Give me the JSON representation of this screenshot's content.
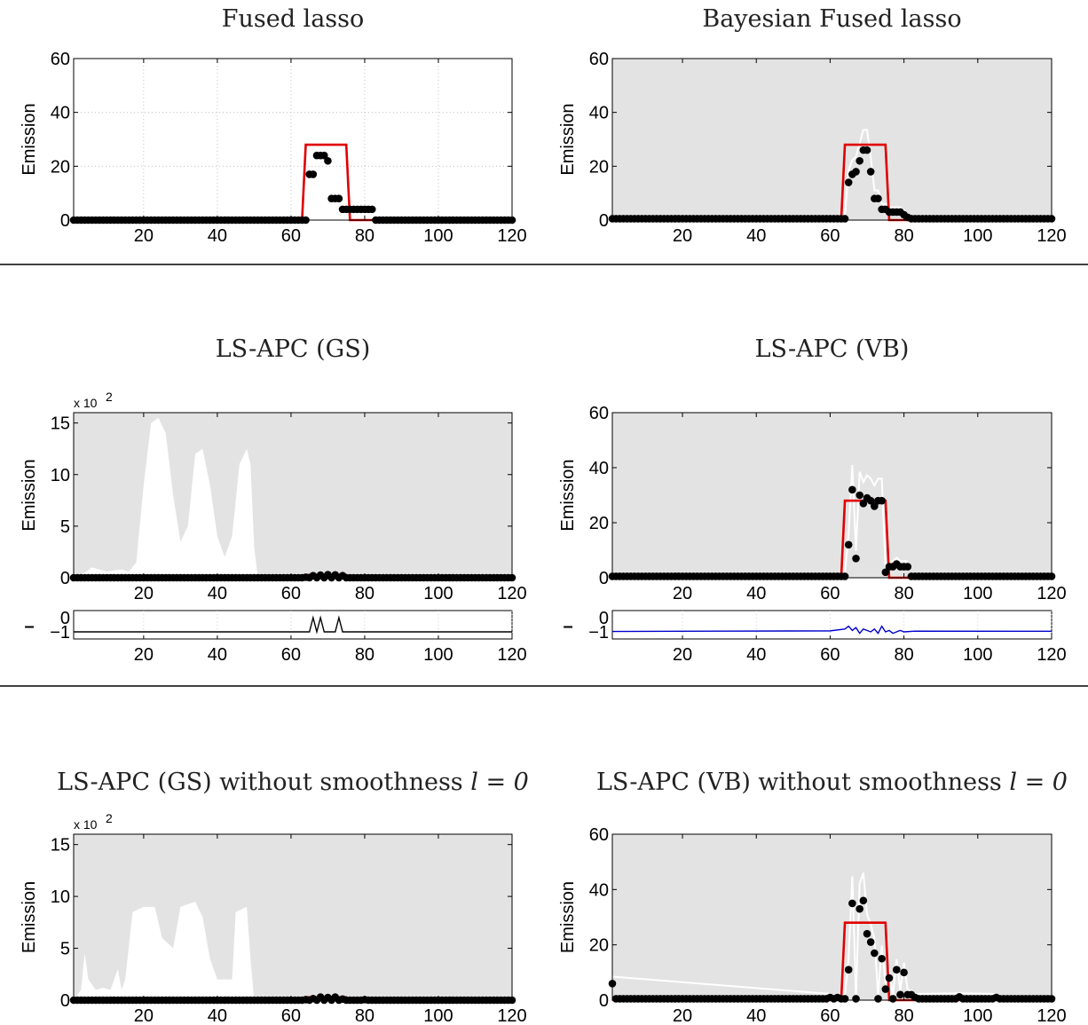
{
  "figure": {
    "background": "#ffffff",
    "separator_color": "#000000"
  },
  "chart_data": [
    {
      "id": "p1",
      "type": "scatter",
      "title": "Fused lasso",
      "ylabel": "Emission",
      "xlim": [
        1,
        120
      ],
      "ylim": [
        0,
        60
      ],
      "xticks": [
        20,
        40,
        60,
        80,
        100,
        120
      ],
      "yticks": [
        0,
        20,
        40,
        60
      ],
      "grid": true,
      "shaded_background": false,
      "true_signal": {
        "color": "#e00000",
        "points": [
          [
            1,
            0
          ],
          [
            63,
            0
          ],
          [
            64,
            28
          ],
          [
            75,
            28
          ],
          [
            76,
            0
          ],
          [
            120,
            0
          ]
        ]
      },
      "estimate_segments": [
        {
          "x": [
            1,
            64
          ],
          "y": 0
        },
        {
          "x": [
            65,
            66
          ],
          "y": 17
        },
        {
          "x": [
            67,
            69
          ],
          "y": 24
        },
        {
          "x": [
            70,
            70
          ],
          "y": 22
        },
        {
          "x": [
            71,
            73
          ],
          "y": 8
        },
        {
          "x": [
            74,
            78
          ],
          "y": 4
        },
        {
          "x": [
            79,
            82
          ],
          "y": 4
        },
        {
          "x": [
            83,
            120
          ],
          "y": 0
        }
      ]
    },
    {
      "id": "p2",
      "type": "scatter",
      "title": "Bayesian Fused lasso",
      "ylabel": "Emission",
      "xlim": [
        1,
        120
      ],
      "ylim": [
        0,
        60
      ],
      "xticks": [
        20,
        40,
        60,
        80,
        100,
        120
      ],
      "yticks": [
        0,
        20,
        40,
        60
      ],
      "grid": false,
      "shaded_background": true,
      "true_signal": {
        "color": "#e00000",
        "points": [
          [
            1,
            0
          ],
          [
            63,
            0
          ],
          [
            64,
            28
          ],
          [
            75,
            28
          ],
          [
            76,
            0
          ],
          [
            120,
            0
          ]
        ]
      },
      "estimate_points": [
        [
          64,
          0.5
        ],
        [
          65,
          14
        ],
        [
          66,
          17
        ],
        [
          67,
          18
        ],
        [
          68,
          22
        ],
        [
          69,
          26
        ],
        [
          70,
          26
        ],
        [
          71,
          18
        ],
        [
          72,
          8
        ],
        [
          73,
          8
        ],
        [
          74,
          4
        ],
        [
          75,
          4
        ],
        [
          76,
          3
        ],
        [
          77,
          3
        ],
        [
          78,
          3
        ],
        [
          79,
          3
        ],
        [
          80,
          2
        ],
        [
          81,
          1
        ]
      ],
      "baseline": 0.5
    },
    {
      "id": "p3",
      "type": "scatter",
      "title": "LS-APC (GS)",
      "ylabel": "Emission",
      "multiplier_label": "x 10",
      "multiplier_exp": "2",
      "xlim": [
        1,
        120
      ],
      "ylim": [
        0,
        16
      ],
      "xticks": [
        20,
        40,
        60,
        80,
        100,
        120
      ],
      "yticks": [
        0,
        5,
        10,
        15
      ],
      "grid": false,
      "shaded_background": true,
      "credible_band": [
        [
          1,
          0
        ],
        [
          4,
          0.5
        ],
        [
          6,
          1
        ],
        [
          10,
          0.6
        ],
        [
          14,
          0.8
        ],
        [
          16,
          0.6
        ],
        [
          18,
          1.5
        ],
        [
          20,
          9
        ],
        [
          22,
          15
        ],
        [
          24,
          15.5
        ],
        [
          26,
          14
        ],
        [
          28,
          8
        ],
        [
          30,
          3.5
        ],
        [
          32,
          5
        ],
        [
          34,
          12
        ],
        [
          36,
          12.5
        ],
        [
          38,
          9
        ],
        [
          40,
          4
        ],
        [
          42,
          2
        ],
        [
          44,
          4
        ],
        [
          46,
          11
        ],
        [
          48,
          12.5
        ],
        [
          49,
          11
        ],
        [
          50,
          3
        ],
        [
          51,
          0
        ]
      ],
      "true_signal": {
        "color": "#e00000",
        "points": [
          [
            1,
            0
          ],
          [
            63,
            0
          ],
          [
            64,
            0.28
          ],
          [
            75,
            0.28
          ],
          [
            76,
            0
          ],
          [
            120,
            0
          ]
        ]
      },
      "estimate_points": [
        [
          64,
          0.05
        ],
        [
          66,
          0.2
        ],
        [
          68,
          0.25
        ],
        [
          70,
          0.3
        ],
        [
          72,
          0.28
        ],
        [
          74,
          0.2
        ]
      ],
      "baseline": 0,
      "sub": {
        "ylim": [
          -1.5,
          0.5
        ],
        "yticks": [
          0,
          -1
        ],
        "side_label": "–",
        "line_color": "#000000",
        "points": [
          [
            1,
            -1
          ],
          [
            64,
            -1
          ],
          [
            65,
            -1
          ],
          [
            66,
            0
          ],
          [
            67,
            -1
          ],
          [
            68,
            0
          ],
          [
            69,
            -1
          ],
          [
            72,
            -1
          ],
          [
            73,
            0
          ],
          [
            74,
            -1
          ],
          [
            120,
            -1
          ]
        ]
      }
    },
    {
      "id": "p4",
      "type": "scatter",
      "title": "LS-APC (VB)",
      "ylabel": "Emission",
      "xlim": [
        1,
        120
      ],
      "ylim": [
        0,
        60
      ],
      "xticks": [
        20,
        40,
        60,
        80,
        100,
        120
      ],
      "yticks": [
        0,
        20,
        40,
        60
      ],
      "grid": false,
      "shaded_background": true,
      "true_signal": {
        "color": "#e00000",
        "points": [
          [
            1,
            0
          ],
          [
            63,
            0
          ],
          [
            64,
            28
          ],
          [
            75,
            28
          ],
          [
            76,
            0
          ],
          [
            120,
            0
          ]
        ]
      },
      "estimate_points": [
        [
          64,
          0.5
        ],
        [
          65,
          12
        ],
        [
          66,
          32
        ],
        [
          67,
          7
        ],
        [
          68,
          30
        ],
        [
          69,
          27
        ],
        [
          70,
          29
        ],
        [
          71,
          28
        ],
        [
          72,
          26
        ],
        [
          73,
          28
        ],
        [
          74,
          28
        ],
        [
          75,
          2
        ],
        [
          76,
          4
        ],
        [
          77,
          4
        ],
        [
          78,
          5
        ],
        [
          79,
          4
        ],
        [
          80,
          4
        ],
        [
          81,
          4
        ]
      ],
      "baseline": 0.5,
      "sub": {
        "ylim": [
          -1.5,
          0.5
        ],
        "yticks": [
          0,
          -1
        ],
        "side_label": "–",
        "line_color": "#0000cc",
        "points": [
          [
            1,
            -0.97
          ],
          [
            30,
            -0.95
          ],
          [
            60,
            -0.93
          ],
          [
            64,
            -0.8
          ],
          [
            65,
            -0.6
          ],
          [
            66,
            -0.9
          ],
          [
            67,
            -0.7
          ],
          [
            68,
            -1.1
          ],
          [
            69,
            -0.8
          ],
          [
            70,
            -0.9
          ],
          [
            71,
            -1.0
          ],
          [
            72,
            -0.8
          ],
          [
            73,
            -1.1
          ],
          [
            74,
            -0.6
          ],
          [
            75,
            -1.0
          ],
          [
            76,
            -0.9
          ],
          [
            77,
            -1.1
          ],
          [
            79,
            -0.9
          ],
          [
            80,
            -1.0
          ],
          [
            83,
            -0.95
          ],
          [
            120,
            -0.96
          ]
        ]
      }
    },
    {
      "id": "p5",
      "type": "scatter",
      "title": "LS-APC (GS) without smoothness",
      "title_math": "l = 0",
      "ylabel": "Emission",
      "multiplier_label": "x 10",
      "multiplier_exp": "2",
      "xlim": [
        1,
        120
      ],
      "ylim": [
        0,
        16
      ],
      "xticks": [
        20,
        40,
        60,
        80,
        100,
        120
      ],
      "yticks": [
        0,
        5,
        10,
        15
      ],
      "grid": false,
      "shaded_background": true,
      "credible_band": [
        [
          1,
          0
        ],
        [
          3,
          1
        ],
        [
          4,
          4.5
        ],
        [
          5,
          2
        ],
        [
          7,
          1
        ],
        [
          9,
          1.2
        ],
        [
          11,
          1
        ],
        [
          13,
          3
        ],
        [
          14,
          1
        ],
        [
          15,
          2
        ],
        [
          17,
          8.5
        ],
        [
          20,
          9
        ],
        [
          23,
          9
        ],
        [
          25,
          6
        ],
        [
          28,
          5
        ],
        [
          30,
          9
        ],
        [
          34,
          9.5
        ],
        [
          36,
          8
        ],
        [
          38,
          4
        ],
        [
          40,
          2
        ],
        [
          44,
          2
        ],
        [
          45,
          8.5
        ],
        [
          48,
          9
        ],
        [
          49,
          4
        ],
        [
          50,
          0
        ]
      ],
      "true_signal": {
        "color": "#e00000",
        "points": [
          [
            1,
            0
          ],
          [
            63,
            0
          ],
          [
            64,
            0.28
          ],
          [
            75,
            0.28
          ],
          [
            76,
            0
          ],
          [
            120,
            0
          ]
        ]
      },
      "estimate_points": [
        [
          64,
          0.05
        ],
        [
          66,
          0.15
        ],
        [
          68,
          0.3
        ],
        [
          70,
          0.25
        ],
        [
          72,
          0.3
        ],
        [
          74,
          0.1
        ],
        [
          80,
          0.05
        ]
      ],
      "baseline": 0
    },
    {
      "id": "p6",
      "type": "scatter",
      "title": "LS-APC (VB) without smoothness",
      "title_math": "l = 0",
      "ylabel": "Emission",
      "xlim": [
        1,
        120
      ],
      "ylim": [
        0,
        60
      ],
      "xticks": [
        20,
        40,
        60,
        80,
        100,
        120
      ],
      "yticks": [
        0,
        20,
        40,
        60
      ],
      "grid": false,
      "shaded_background": true,
      "true_signal": {
        "color": "#e00000",
        "points": [
          [
            1,
            0
          ],
          [
            63,
            0
          ],
          [
            64,
            28
          ],
          [
            75,
            28
          ],
          [
            76,
            0
          ],
          [
            120,
            0
          ]
        ]
      },
      "estimate_points": [
        [
          1,
          6
        ],
        [
          60,
          1
        ],
        [
          61,
          0.5
        ],
        [
          62,
          1
        ],
        [
          64,
          0.5
        ],
        [
          65,
          11
        ],
        [
          66,
          35
        ],
        [
          67,
          0.5
        ],
        [
          68,
          33
        ],
        [
          69,
          36
        ],
        [
          70,
          24
        ],
        [
          71,
          21
        ],
        [
          72,
          17
        ],
        [
          73,
          0.5
        ],
        [
          74,
          15
        ],
        [
          75,
          4
        ],
        [
          76,
          8
        ],
        [
          77,
          0.5
        ],
        [
          78,
          11
        ],
        [
          79,
          2
        ],
        [
          80,
          10
        ],
        [
          81,
          2
        ],
        [
          82,
          2
        ],
        [
          83,
          1
        ],
        [
          95,
          1.2
        ],
        [
          105,
          1
        ]
      ],
      "baseline": 0.5
    }
  ]
}
